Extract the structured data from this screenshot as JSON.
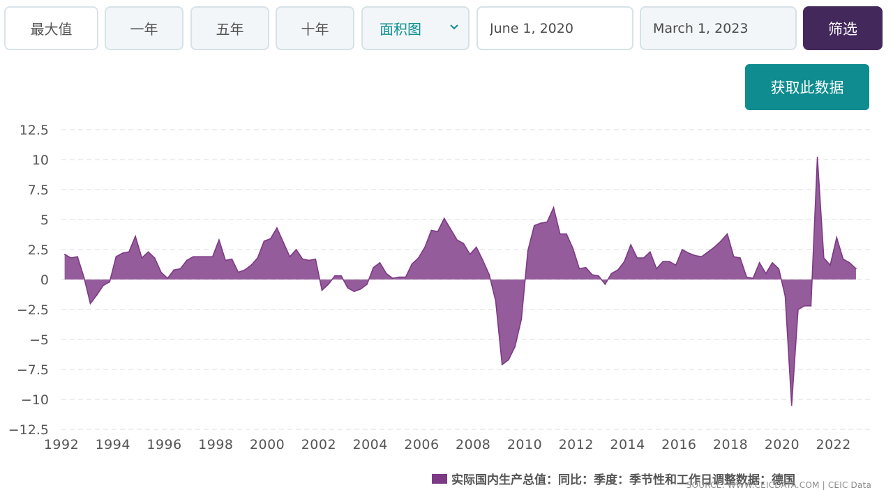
{
  "toolbar": {
    "range_buttons": [
      "最大值",
      "一年",
      "五年",
      "十年"
    ],
    "chart_type": "面积图",
    "start_date": "June 1, 2020",
    "end_date": "March 1, 2023",
    "filter_label": "筛选"
  },
  "get_data_label": "获取此数据",
  "colors": {
    "series": "#7c3a84",
    "fill": "#8e5396",
    "filter_button": "#43285b",
    "get_data_button": "#0f8c8f"
  },
  "chart_data": {
    "type": "area",
    "title": "",
    "xlabel": "",
    "ylabel": "",
    "ylim": [
      -12.5,
      12.5
    ],
    "y_ticks": [
      "12.5",
      "10",
      "7.5",
      "5",
      "2.5",
      "0",
      "-2.5",
      "-5",
      "-7.5",
      "-10",
      "-12.5"
    ],
    "x_ticks": [
      "1992",
      "1994",
      "1996",
      "1998",
      "2000",
      "2002",
      "2004",
      "2006",
      "2008",
      "2010",
      "2012",
      "2014",
      "2016",
      "2018",
      "2020",
      "2022"
    ],
    "x_range": [
      1992.0,
      2023.5
    ],
    "grid": "horizontal-dashed",
    "legend_position": "bottom-right",
    "series": [
      {
        "name": "实际国内生产总值：同比：季度：季节性和工作日调整数据：德国",
        "x": [
          1992.125,
          1992.375,
          1992.625,
          1992.875,
          1993.125,
          1993.375,
          1993.625,
          1993.875,
          1994.125,
          1994.375,
          1994.625,
          1994.875,
          1995.125,
          1995.375,
          1995.625,
          1995.875,
          1996.125,
          1996.375,
          1996.625,
          1996.875,
          1997.125,
          1997.375,
          1997.625,
          1997.875,
          1998.125,
          1998.375,
          1998.625,
          1998.875,
          1999.125,
          1999.375,
          1999.625,
          1999.875,
          2000.125,
          2000.375,
          2000.625,
          2000.875,
          2001.125,
          2001.375,
          2001.625,
          2001.875,
          2002.125,
          2002.375,
          2002.625,
          2002.875,
          2003.125,
          2003.375,
          2003.625,
          2003.875,
          2004.125,
          2004.375,
          2004.625,
          2004.875,
          2005.125,
          2005.375,
          2005.625,
          2005.875,
          2006.125,
          2006.375,
          2006.625,
          2006.875,
          2007.125,
          2007.375,
          2007.625,
          2007.875,
          2008.125,
          2008.375,
          2008.625,
          2008.875,
          2009.125,
          2009.375,
          2009.625,
          2009.875,
          2010.125,
          2010.375,
          2010.625,
          2010.875,
          2011.125,
          2011.375,
          2011.625,
          2011.875,
          2012.125,
          2012.375,
          2012.625,
          2012.875,
          2013.125,
          2013.375,
          2013.625,
          2013.875,
          2014.125,
          2014.375,
          2014.625,
          2014.875,
          2015.125,
          2015.375,
          2015.625,
          2015.875,
          2016.125,
          2016.375,
          2016.625,
          2016.875,
          2017.125,
          2017.375,
          2017.625,
          2017.875,
          2018.125,
          2018.375,
          2018.625,
          2018.875,
          2019.125,
          2019.375,
          2019.625,
          2019.875,
          2020.125,
          2020.375,
          2020.625,
          2020.875,
          2021.125,
          2021.375,
          2021.625,
          2021.875,
          2022.125,
          2022.375,
          2022.625,
          2022.875
        ],
        "values": [
          2.1,
          1.8,
          1.9,
          0.2,
          -2.0,
          -1.3,
          -0.5,
          -0.2,
          1.9,
          2.2,
          2.3,
          3.6,
          1.8,
          2.3,
          1.8,
          0.6,
          0.1,
          0.8,
          0.9,
          1.6,
          1.9,
          1.9,
          1.9,
          1.9,
          3.3,
          1.6,
          1.7,
          0.6,
          0.8,
          1.2,
          1.8,
          3.2,
          3.4,
          4.3,
          3.1,
          1.9,
          2.5,
          1.7,
          1.6,
          1.7,
          -0.9,
          -0.4,
          0.3,
          0.3,
          -0.7,
          -1.0,
          -0.8,
          -0.4,
          1.0,
          1.4,
          0.5,
          0.1,
          0.2,
          0.2,
          1.3,
          1.8,
          2.7,
          4.1,
          4.0,
          5.1,
          4.2,
          3.3,
          3.0,
          2.1,
          2.7,
          1.6,
          0.4,
          -1.8,
          -7.1,
          -6.7,
          -5.6,
          -3.3,
          2.4,
          4.5,
          4.7,
          4.8,
          6.0,
          3.8,
          3.8,
          2.6,
          0.9,
          1.0,
          0.4,
          0.3,
          -0.4,
          0.5,
          0.8,
          1.5,
          2.9,
          1.8,
          1.8,
          2.3,
          0.9,
          1.5,
          1.5,
          1.2,
          2.5,
          2.2,
          2.0,
          1.9,
          2.3,
          2.7,
          3.2,
          3.8,
          1.9,
          1.8,
          0.2,
          0.1,
          1.4,
          0.5,
          1.4,
          0.9,
          -1.4,
          -10.5,
          -2.5,
          -2.2,
          -2.2,
          10.2,
          1.8,
          1.2,
          3.5,
          1.7,
          1.4,
          0.9
        ]
      }
    ]
  },
  "source_text": "SOURCE: WWW.CEICDATA.COM | CEIC Data"
}
